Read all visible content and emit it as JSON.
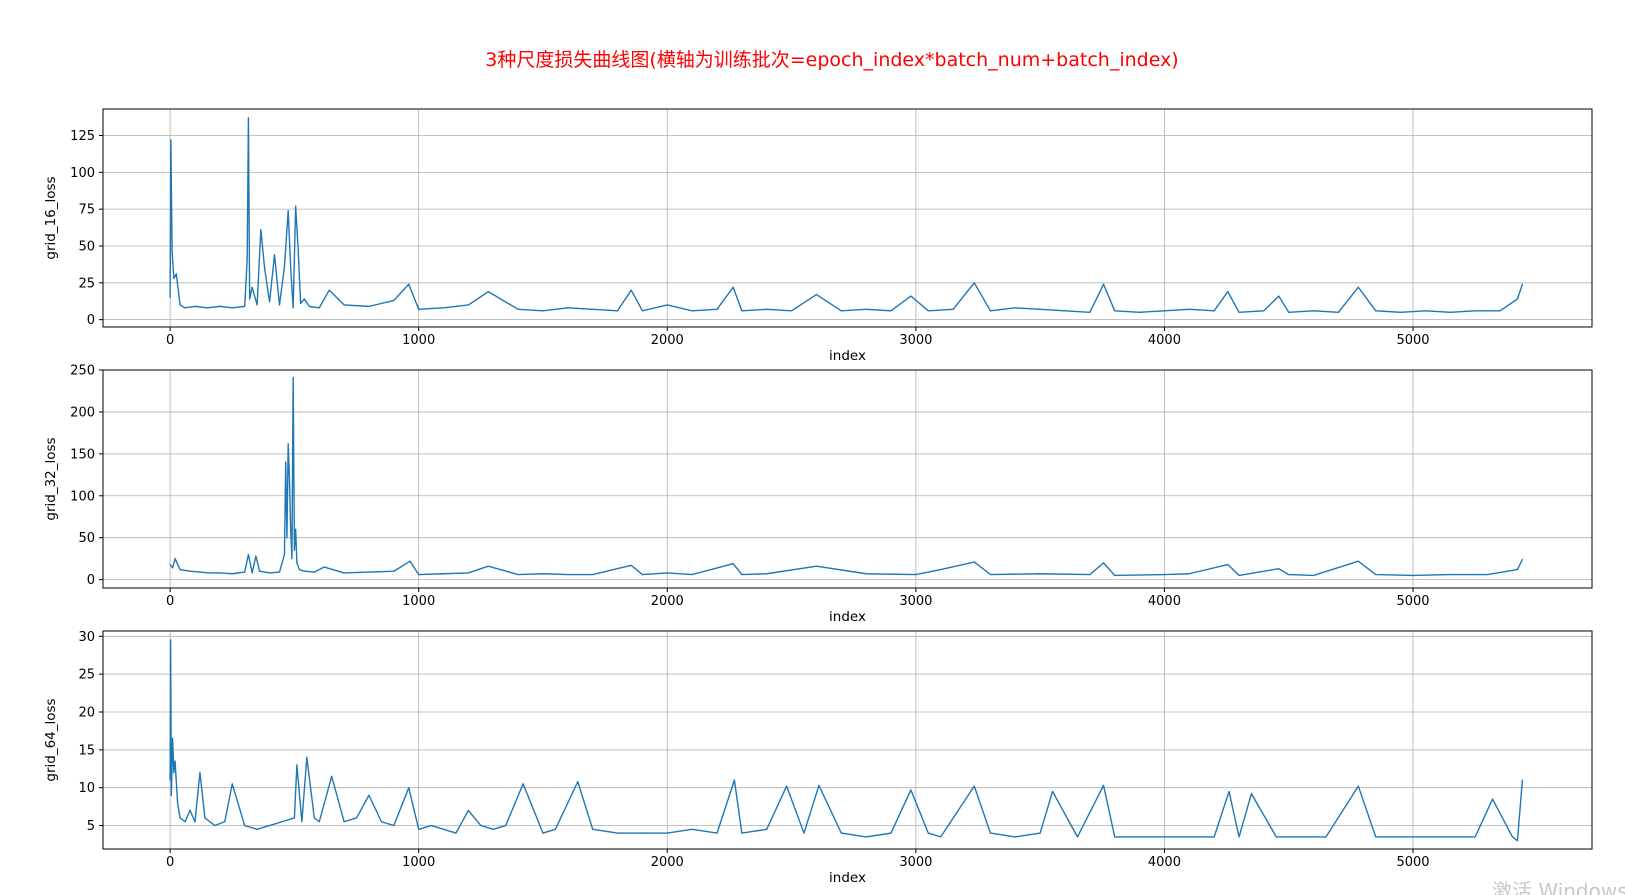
{
  "figure": {
    "title": "3种尺度损失曲线图(横轴为训练批次=epoch_index*batch_num+batch_index)",
    "title_color": "#ff0000",
    "line_color": "#1f77b4",
    "watermark": "激活 Windows"
  },
  "chart_data": [
    {
      "type": "line",
      "title": "",
      "xlabel": "index",
      "ylabel": "grid_16_loss",
      "xlim": [
        -270,
        5720
      ],
      "ylim": [
        -5,
        143
      ],
      "xticks": [
        0,
        1000,
        2000,
        3000,
        4000,
        5000
      ],
      "yticks": [
        0,
        25,
        50,
        75,
        100,
        125
      ],
      "grid": true,
      "series": [
        {
          "name": "",
          "color": "#1f77b4",
          "x": [
            0,
            3,
            8,
            15,
            25,
            40,
            60,
            100,
            150,
            200,
            250,
            300,
            310,
            315,
            320,
            330,
            350,
            365,
            380,
            400,
            420,
            440,
            460,
            475,
            485,
            495,
            505,
            515,
            525,
            540,
            560,
            600,
            640,
            700,
            800,
            900,
            960,
            1000,
            1100,
            1200,
            1280,
            1400,
            1500,
            1600,
            1700,
            1800,
            1855,
            1900,
            2000,
            2100,
            2200,
            2265,
            2300,
            2400,
            2500,
            2600,
            2700,
            2800,
            2900,
            2980,
            3050,
            3150,
            3235,
            3300,
            3400,
            3500,
            3600,
            3700,
            3755,
            3800,
            3900,
            4000,
            4100,
            4200,
            4255,
            4300,
            4400,
            4460,
            4500,
            4600,
            4700,
            4780,
            4850,
            4950,
            5050,
            5150,
            5250,
            5350,
            5420,
            5440
          ],
          "values": [
            15,
            122,
            46,
            28,
            31,
            10,
            8,
            9,
            8,
            9,
            8,
            9,
            41,
            137,
            14,
            22,
            10,
            61,
            35,
            12,
            44,
            10,
            36,
            74,
            35,
            8,
            77,
            48,
            11,
            14,
            9,
            8,
            20,
            10,
            9,
            13,
            24,
            7,
            8,
            10,
            19,
            7,
            6,
            8,
            7,
            6,
            20,
            6,
            10,
            6,
            7,
            22,
            6,
            7,
            6,
            17,
            6,
            7,
            6,
            16,
            6,
            7,
            25,
            6,
            8,
            7,
            6,
            5,
            24,
            6,
            5,
            6,
            7,
            6,
            19,
            5,
            6,
            16,
            5,
            6,
            5,
            22,
            6,
            5,
            6,
            5,
            6,
            6,
            14,
            24
          ]
        }
      ]
    },
    {
      "type": "line",
      "title": "",
      "xlabel": "index",
      "ylabel": "grid_32_loss",
      "xlim": [
        -270,
        5720
      ],
      "ylim": [
        -10,
        250
      ],
      "xticks": [
        0,
        1000,
        2000,
        3000,
        4000,
        5000
      ],
      "yticks": [
        0,
        50,
        100,
        150,
        200,
        250
      ],
      "grid": true,
      "series": [
        {
          "name": "",
          "color": "#1f77b4",
          "x": [
            0,
            10,
            20,
            40,
            80,
            120,
            160,
            200,
            250,
            300,
            315,
            330,
            345,
            360,
            400,
            440,
            460,
            465,
            470,
            475,
            480,
            485,
            490,
            495,
            500,
            505,
            510,
            520,
            540,
            580,
            620,
            700,
            800,
            900,
            965,
            1000,
            1100,
            1200,
            1280,
            1400,
            1500,
            1600,
            1700,
            1855,
            1900,
            2000,
            2100,
            2265,
            2300,
            2400,
            2600,
            2800,
            3000,
            3100,
            3235,
            3300,
            3500,
            3700,
            3755,
            3800,
            4000,
            4100,
            4255,
            4300,
            4460,
            4500,
            4600,
            4780,
            4850,
            5000,
            5150,
            5300,
            5420,
            5440
          ],
          "values": [
            18,
            14,
            25,
            12,
            10,
            9,
            8,
            8,
            7,
            9,
            30,
            8,
            28,
            10,
            8,
            9,
            30,
            140,
            50,
            162,
            120,
            60,
            25,
            241,
            35,
            60,
            20,
            12,
            10,
            9,
            15,
            8,
            9,
            10,
            22,
            6,
            7,
            8,
            16,
            6,
            7,
            6,
            6,
            17,
            6,
            8,
            6,
            19,
            6,
            7,
            16,
            7,
            6,
            12,
            21,
            6,
            7,
            6,
            20,
            5,
            6,
            7,
            18,
            5,
            13,
            6,
            5,
            22,
            6,
            5,
            6,
            6,
            12,
            24
          ]
        }
      ]
    },
    {
      "type": "line",
      "title": "",
      "xlabel": "index",
      "ylabel": "grid_64_loss",
      "xlim": [
        -270,
        5720
      ],
      "ylim": [
        1.9,
        30.7
      ],
      "xticks": [
        0,
        1000,
        2000,
        3000,
        4000,
        5000
      ],
      "yticks": [
        5,
        10,
        15,
        20,
        25,
        30
      ],
      "grid": true,
      "series": [
        {
          "name": "",
          "color": "#1f77b4",
          "x": [
            0,
            2,
            5,
            10,
            15,
            20,
            30,
            40,
            60,
            80,
            100,
            120,
            140,
            180,
            220,
            250,
            300,
            350,
            400,
            450,
            500,
            510,
            530,
            550,
            580,
            600,
            650,
            700,
            750,
            800,
            850,
            900,
            960,
            1000,
            1050,
            1100,
            1150,
            1200,
            1250,
            1300,
            1350,
            1420,
            1500,
            1550,
            1640,
            1700,
            1800,
            1900,
            2000,
            2100,
            2200,
            2270,
            2300,
            2400,
            2480,
            2550,
            2610,
            2700,
            2800,
            2900,
            2980,
            3050,
            3100,
            3235,
            3300,
            3400,
            3500,
            3550,
            3650,
            3755,
            3800,
            3900,
            4000,
            4100,
            4200,
            4260,
            4300,
            4350,
            4450,
            4550,
            4650,
            4780,
            4850,
            4950,
            5050,
            5150,
            5250,
            5320,
            5400,
            5420,
            5440
          ],
          "values": [
            11,
            29.5,
            9,
            16.5,
            12,
            13.5,
            8,
            6,
            5.5,
            7,
            5.5,
            12,
            6,
            5,
            5.5,
            10.5,
            5,
            4.5,
            5,
            5.5,
            6,
            13,
            5.5,
            14,
            6,
            5.5,
            11.5,
            5.5,
            6,
            9,
            5.5,
            5,
            10,
            4.5,
            5,
            4.5,
            4,
            7,
            5,
            4.5,
            5,
            10.5,
            4,
            4.5,
            10.8,
            4.5,
            4,
            4,
            4,
            4.5,
            4,
            11,
            4,
            4.5,
            10.2,
            4,
            10.3,
            4,
            3.5,
            4,
            9.7,
            4,
            3.5,
            10.2,
            4,
            3.5,
            4,
            9.5,
            3.5,
            10.3,
            3.5,
            3.5,
            3.5,
            3.5,
            3.5,
            9.5,
            3.5,
            9.2,
            3.5,
            3.5,
            3.5,
            10.2,
            3.5,
            3.5,
            3.5,
            3.5,
            3.5,
            8.5,
            3.5,
            3,
            11
          ]
        }
      ]
    }
  ]
}
